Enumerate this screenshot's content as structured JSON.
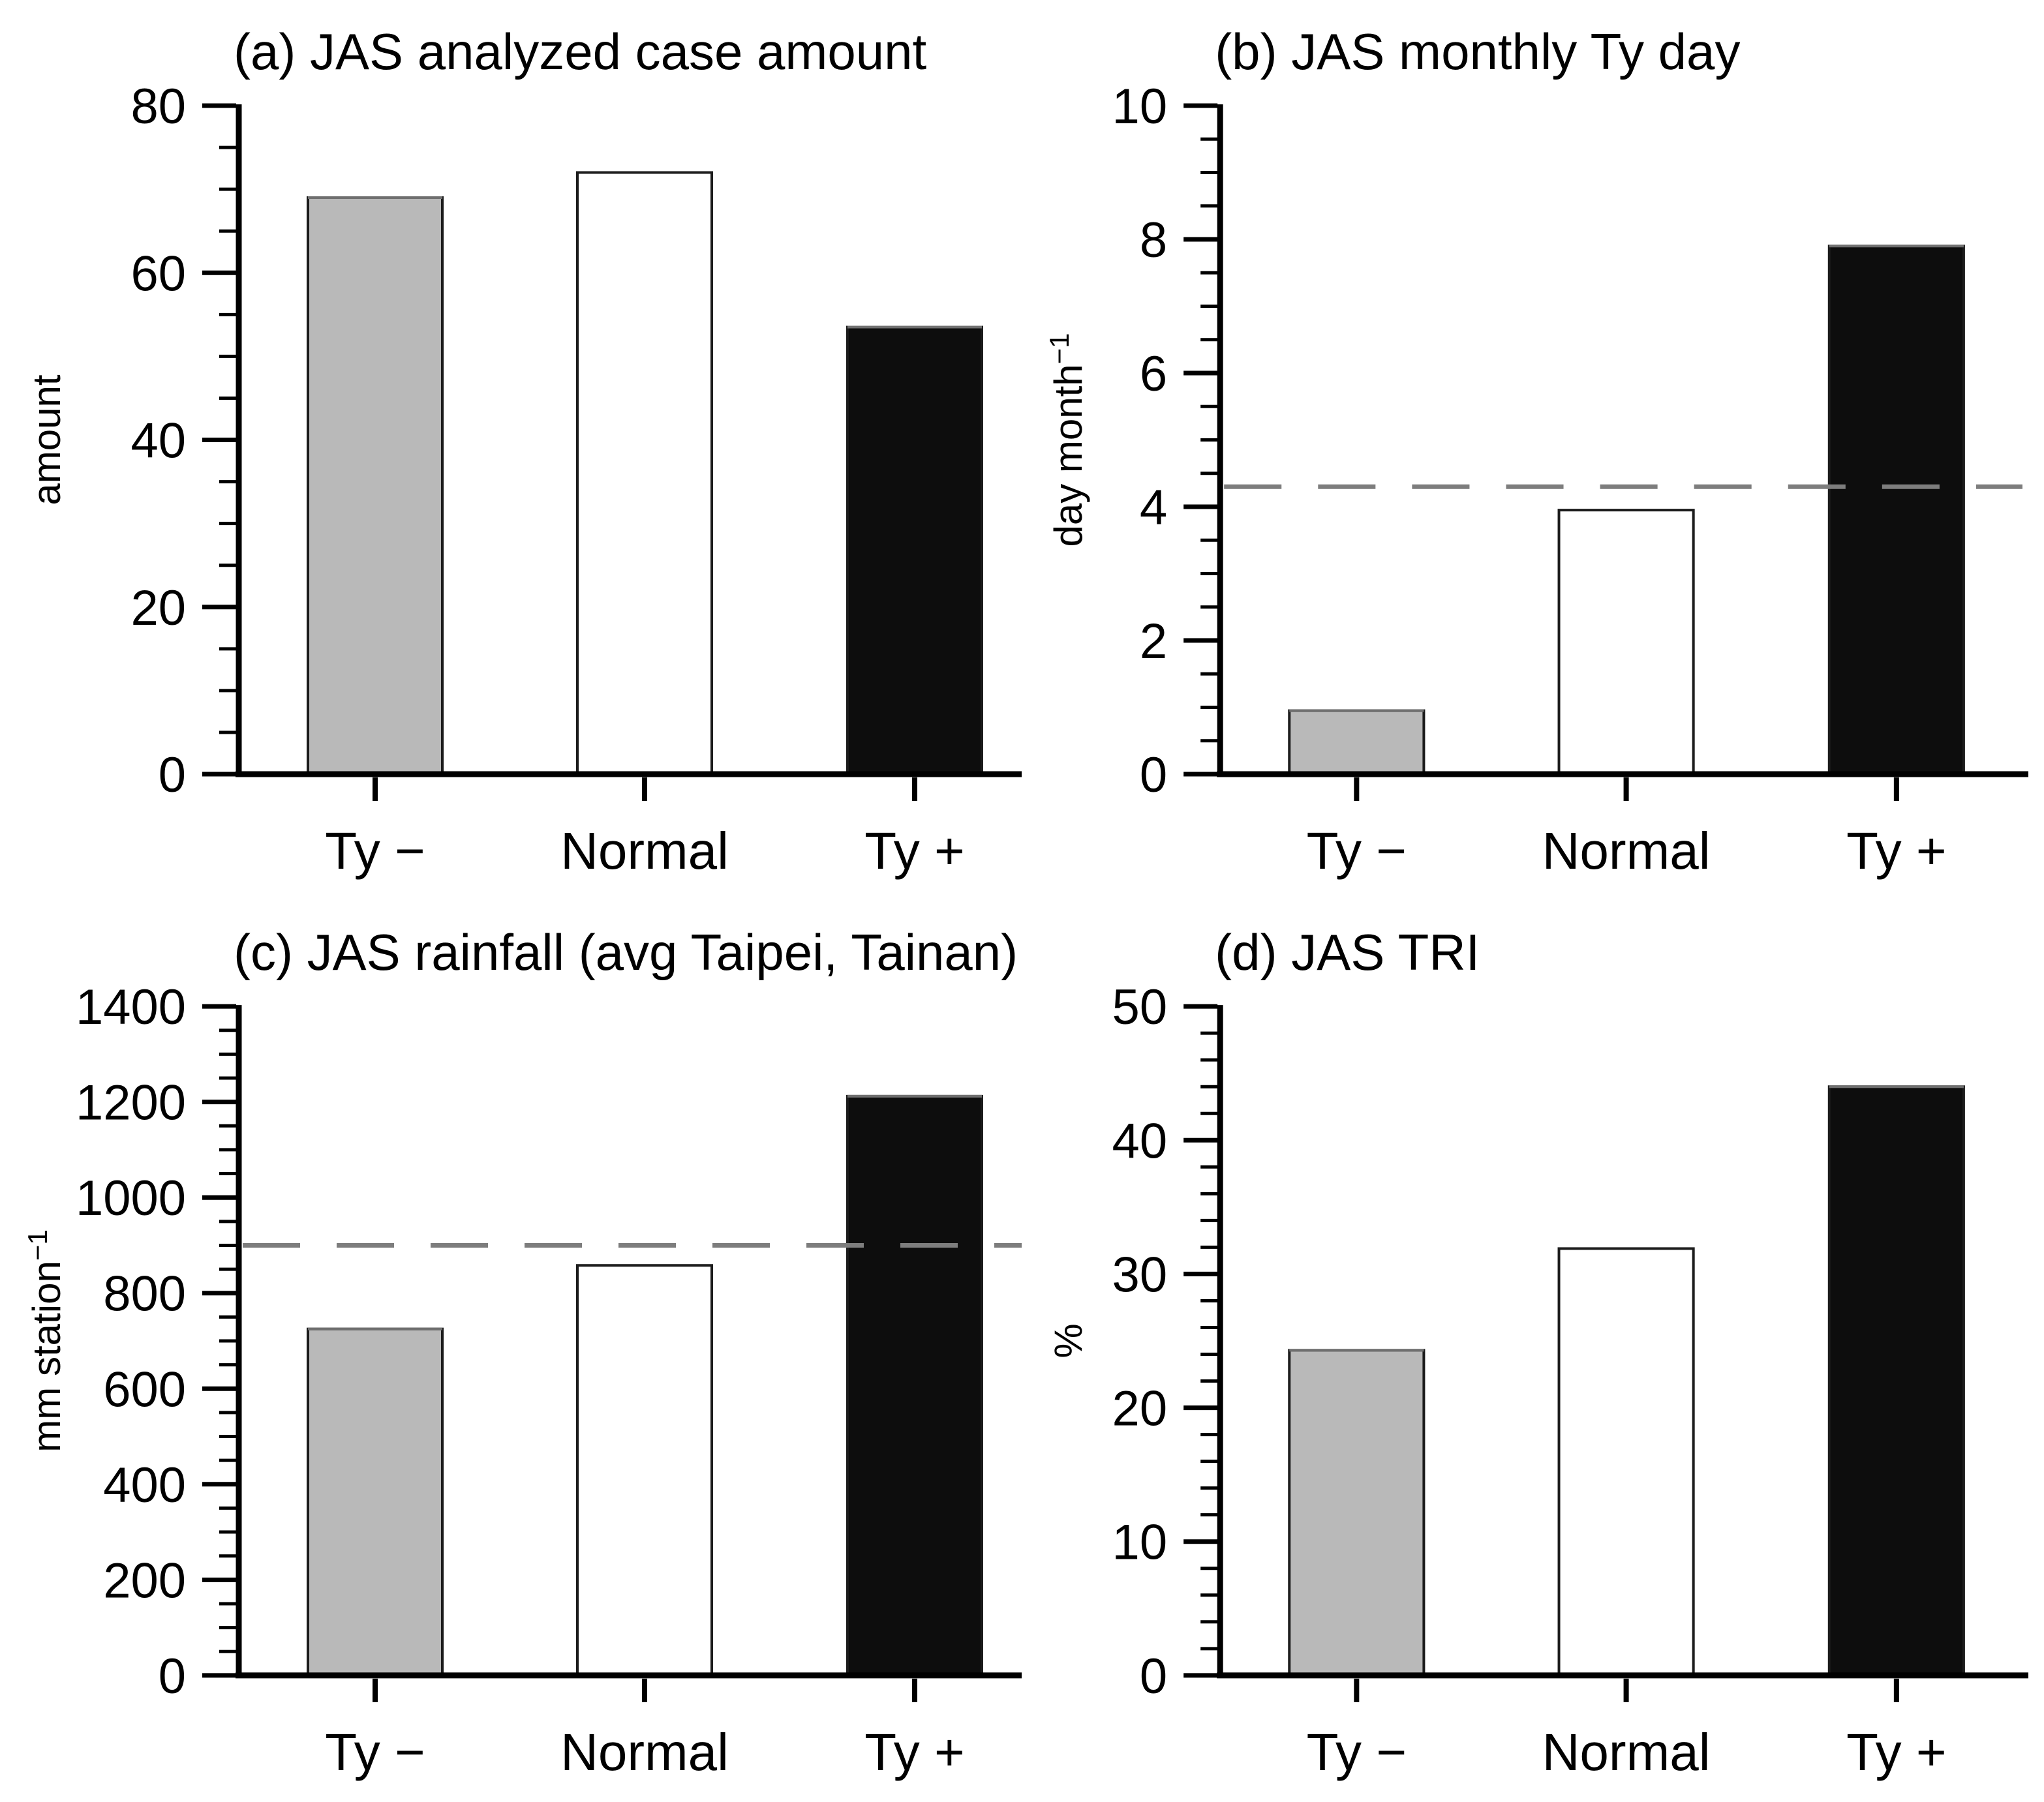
{
  "figure": {
    "background": "#ffffff",
    "text_color": "#000000",
    "bar_outline_color": "#1c1c1c",
    "bar_top_edge_color": "#6f6f6f",
    "axis_color": "#000000",
    "ref_line_color": "#7d7d7d"
  },
  "categories": [
    "Ty −",
    "Normal",
    "Ty +"
  ],
  "bar_fill_colors": [
    "#b9b9b9",
    "#ffffff",
    "#0d0d0d"
  ],
  "chart_data": [
    {
      "id": "a",
      "type": "bar",
      "title": "(a) JAS analyzed case amount",
      "ylabel": "amount",
      "ylabel_sup": "",
      "categories": [
        "Ty −",
        "Normal",
        "Ty +"
      ],
      "values": [
        69,
        72,
        53.5
      ],
      "ylim": [
        0,
        80
      ],
      "ytick_major": 20,
      "ytick_minor": 5,
      "ref_line": null,
      "legend": "none",
      "grid": "off"
    },
    {
      "id": "b",
      "type": "bar",
      "title": "(b) JAS monthly Ty day",
      "ylabel": "day month",
      "ylabel_sup": "−1",
      "categories": [
        "Ty −",
        "Normal",
        "Ty +"
      ],
      "values": [
        0.95,
        3.95,
        7.9
      ],
      "ylim": [
        0,
        10
      ],
      "ytick_major": 2,
      "ytick_minor": 0.5,
      "ref_line": 4.3,
      "legend": "none",
      "grid": "off"
    },
    {
      "id": "c",
      "type": "bar",
      "title": "(c) JAS rainfall (avg Taipei, Tainan)",
      "ylabel": "mm station",
      "ylabel_sup": "−1",
      "categories": [
        "Ty −",
        "Normal",
        "Ty +"
      ],
      "values": [
        725,
        858,
        1212
      ],
      "ylim": [
        0,
        1400
      ],
      "ytick_major": 200,
      "ytick_minor": 50,
      "ref_line": 900,
      "legend": "none",
      "grid": "off"
    },
    {
      "id": "d",
      "type": "bar",
      "title": "(d) JAS TRI",
      "ylabel": "%",
      "ylabel_sup": "",
      "categories": [
        "Ty −",
        "Normal",
        "Ty +"
      ],
      "values": [
        24.3,
        31.9,
        44
      ],
      "ylim": [
        0,
        50
      ],
      "ytick_major": 10,
      "ytick_minor": 2,
      "ref_line": null,
      "legend": "none",
      "grid": "off"
    }
  ]
}
